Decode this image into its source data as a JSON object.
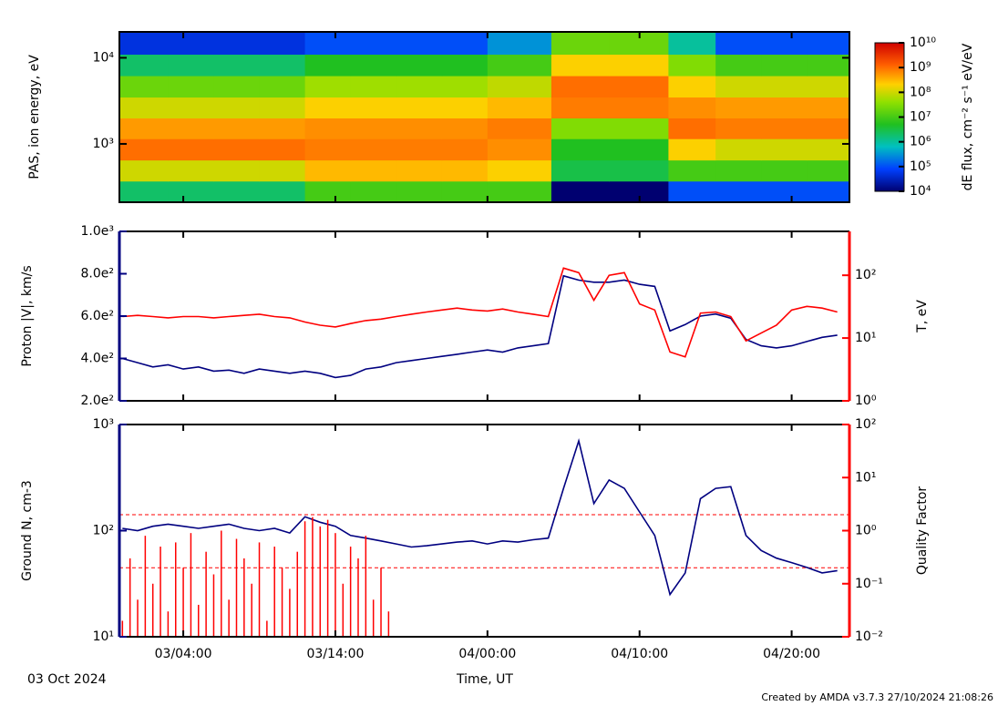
{
  "time_axis": {
    "xlim": [
      -0.2,
      47.8
    ],
    "xticks": [
      {
        "value": 4,
        "label": "03/04:00"
      },
      {
        "value": 14,
        "label": "03/14:00"
      },
      {
        "value": 24,
        "label": "04/00:00"
      },
      {
        "value": 34,
        "label": "04/10:00"
      },
      {
        "value": 44,
        "label": "04/20:00"
      }
    ],
    "label": "Time, UT",
    "date": "03 Oct 2024"
  },
  "footer": "Created by AMDA v3.7.3 27/10/2024 21:08:26",
  "chart_data": [
    {
      "type": "heatmap",
      "ylabel": "PAS, ion energy, eV",
      "log_y": true,
      "ylim": [
        210,
        20000
      ],
      "yticks": [
        {
          "value": 1000,
          "label": "10³"
        },
        {
          "value": 10000,
          "label": "10⁴"
        }
      ],
      "x_edges": [
        -0.2,
        3,
        6,
        9,
        12,
        15,
        18,
        21,
        24,
        28.2,
        32,
        35.9,
        39,
        42,
        45,
        47.8
      ],
      "y_edges": [
        210,
        370,
        650,
        1150,
        2000,
        3500,
        6200,
        11000,
        20000
      ],
      "z": [
        [
          2000000.0,
          2000000.0,
          2000000.0,
          2000000.0,
          10000000.0,
          10000000.0,
          10000000.0,
          10000000.0,
          10000000.0,
          10000.0,
          10000.0,
          100000.0,
          100000.0,
          100000.0,
          100000.0
        ],
        [
          100000000.0,
          100000000.0,
          100000000.0,
          100000000.0,
          300000000.0,
          300000000.0,
          300000000.0,
          300000000.0,
          200000000.0,
          3000000.0,
          3000000.0,
          10000000.0,
          10000000.0,
          10000000.0,
          10000000.0
        ],
        [
          1000000000.0,
          1000000000.0,
          1000000000.0,
          1000000000.0,
          800000000.0,
          800000000.0,
          800000000.0,
          800000000.0,
          600000000.0,
          5000000.0,
          5000000.0,
          200000000.0,
          100000000.0,
          100000000.0,
          100000000.0
        ],
        [
          500000000.0,
          500000000.0,
          500000000.0,
          500000000.0,
          600000000.0,
          600000000.0,
          600000000.0,
          600000000.0,
          800000000.0,
          30000000.0,
          30000000.0,
          1000000000.0,
          800000000.0,
          800000000.0,
          800000000.0
        ],
        [
          100000000.0,
          100000000.0,
          100000000.0,
          100000000.0,
          200000000.0,
          200000000.0,
          200000000.0,
          200000000.0,
          300000000.0,
          800000000.0,
          800000000.0,
          600000000.0,
          500000000.0,
          500000000.0,
          500000000.0
        ],
        [
          20000000.0,
          20000000.0,
          20000000.0,
          20000000.0,
          50000000.0,
          50000000.0,
          50000000.0,
          50000000.0,
          80000000.0,
          1000000000.0,
          1000000000.0,
          200000000.0,
          100000000.0,
          100000000.0,
          100000000.0
        ],
        [
          2000000.0,
          2000000.0,
          2000000.0,
          2000000.0,
          5000000.0,
          5000000.0,
          5000000.0,
          5000000.0,
          10000000.0,
          200000000.0,
          200000000.0,
          30000000.0,
          10000000.0,
          10000000.0,
          10000000.0
        ],
        [
          50000.0,
          50000.0,
          50000.0,
          50000.0,
          100000.0,
          100000.0,
          100000.0,
          100000.0,
          300000.0,
          20000000.0,
          20000000.0,
          1000000.0,
          100000.0,
          100000.0,
          100000.0
        ]
      ],
      "colorbar": {
        "label": "dE flux, cm⁻² s⁻¹ eV/eV",
        "zlim": [
          10000.0,
          10000000000.0
        ],
        "zticks": [
          {
            "value": 10000.0,
            "label": "10⁴"
          },
          {
            "value": 100000.0,
            "label": "10⁵"
          },
          {
            "value": 1000000.0,
            "label": "10⁶"
          },
          {
            "value": 10000000.0,
            "label": "10⁷"
          },
          {
            "value": 100000000.0,
            "label": "10⁸"
          },
          {
            "value": 1000000000.0,
            "label": "10⁹"
          },
          {
            "value": 10000000000.0,
            "label": "10¹⁰"
          }
        ]
      }
    },
    {
      "type": "line",
      "ylabel": "Proton |V|, km/s",
      "y2label": "T, eV",
      "log_y2": true,
      "ylim": [
        200,
        1000
      ],
      "yticks": [
        {
          "value": 200,
          "label": "2.0e²"
        },
        {
          "value": 400,
          "label": "4.0e²"
        },
        {
          "value": 600,
          "label": "6.0e²"
        },
        {
          "value": 800,
          "label": "8.0e²"
        },
        {
          "value": 1000,
          "label": "1.0e³"
        }
      ],
      "y2lim": [
        1,
        500
      ],
      "y2ticks": [
        {
          "value": 1,
          "label": "10⁰"
        },
        {
          "value": 10,
          "label": "10¹"
        },
        {
          "value": 100,
          "label": "10²"
        }
      ],
      "series": [
        {
          "name": "Proton |V|",
          "color": "#000080",
          "x": [
            0,
            1,
            2,
            3,
            4,
            5,
            6,
            7,
            8,
            9,
            10,
            11,
            12,
            13,
            14,
            15,
            16,
            17,
            18,
            19,
            20,
            21,
            22,
            23,
            24,
            25,
            26,
            27,
            28,
            29,
            30,
            31,
            32,
            33,
            34,
            35,
            36,
            37,
            38,
            39,
            40,
            41,
            42,
            43,
            44,
            45,
            46,
            47
          ],
          "values": [
            400,
            380,
            360,
            370,
            350,
            360,
            340,
            345,
            330,
            350,
            340,
            330,
            340,
            330,
            310,
            320,
            350,
            360,
            380,
            390,
            400,
            410,
            420,
            430,
            440,
            430,
            450,
            460,
            470,
            790,
            770,
            760,
            760,
            770,
            750,
            740,
            530,
            560,
            600,
            610,
            590,
            490,
            460,
            450,
            460,
            480,
            500,
            510
          ]
        },
        {
          "name": "T",
          "color": "#ff0000",
          "axis": "y2",
          "x": [
            0,
            1,
            2,
            3,
            4,
            5,
            6,
            7,
            8,
            9,
            10,
            11,
            12,
            13,
            14,
            15,
            16,
            17,
            18,
            19,
            20,
            21,
            22,
            23,
            24,
            25,
            26,
            27,
            28,
            29,
            30,
            31,
            32,
            33,
            34,
            35,
            36,
            37,
            38,
            39,
            40,
            41,
            42,
            43,
            44,
            45,
            46,
            47
          ],
          "values": [
            22,
            23,
            22,
            21,
            22,
            22,
            21,
            22,
            23,
            24,
            22,
            21,
            18,
            16,
            15,
            17,
            19,
            20,
            22,
            24,
            26,
            28,
            30,
            28,
            27,
            29,
            26,
            24,
            22,
            130,
            110,
            40,
            100,
            110,
            35,
            28,
            6,
            5,
            25,
            26,
            22,
            9,
            12,
            16,
            28,
            32,
            30,
            26
          ]
        }
      ]
    },
    {
      "type": "line",
      "ylabel": "Ground N, cm-3",
      "y2label": "Quality Factor",
      "log_y": true,
      "log_y2": true,
      "ylim": [
        10,
        1000
      ],
      "yticks": [
        {
          "value": 10,
          "label": "10¹"
        },
        {
          "value": 100,
          "label": "10²"
        },
        {
          "value": 1000,
          "label": "10³"
        }
      ],
      "y2lim": [
        0.01,
        100
      ],
      "y2ticks": [
        {
          "value": 0.01,
          "label": "10⁻²"
        },
        {
          "value": 0.1,
          "label": "10⁻¹"
        },
        {
          "value": 1,
          "label": "10⁰"
        },
        {
          "value": 10,
          "label": "10¹"
        },
        {
          "value": 100,
          "label": "10²"
        }
      ],
      "y2_reference_lines": [
        2,
        0.2
      ],
      "series": [
        {
          "name": "Ground N",
          "color": "#000080",
          "x": [
            0,
            1,
            2,
            3,
            4,
            5,
            6,
            7,
            8,
            9,
            10,
            11,
            12,
            13,
            14,
            15,
            16,
            17,
            18,
            19,
            20,
            21,
            22,
            23,
            24,
            25,
            26,
            27,
            28,
            29,
            30,
            31,
            32,
            33,
            34,
            35,
            36,
            37,
            38,
            39,
            40,
            41,
            42,
            43,
            44,
            45,
            46,
            47
          ],
          "values": [
            105,
            100,
            110,
            115,
            110,
            105,
            110,
            115,
            105,
            100,
            105,
            95,
            135,
            120,
            110,
            90,
            85,
            80,
            75,
            70,
            72,
            75,
            78,
            80,
            75,
            80,
            78,
            82,
            85,
            250,
            700,
            180,
            300,
            250,
            150,
            90,
            25,
            40,
            200,
            250,
            260,
            90,
            65,
            55,
            50,
            45,
            40,
            42
          ]
        },
        {
          "name": "Quality Factor",
          "color": "#ff0000",
          "axis": "y2",
          "style": "stem",
          "x": [
            0,
            0.5,
            1,
            1.5,
            2,
            2.5,
            3,
            3.5,
            4,
            4.5,
            5,
            5.5,
            6,
            6.5,
            7,
            7.5,
            8,
            8.5,
            9,
            9.5,
            10,
            10.5,
            11,
            11.5,
            12,
            12.5,
            13,
            13.5,
            14,
            14.5,
            15,
            15.5,
            16,
            16.5,
            17,
            17.5,
            18
          ],
          "values": [
            0.02,
            0.3,
            0.05,
            0.8,
            0.1,
            0.5,
            0.03,
            0.6,
            0.2,
            0.9,
            0.04,
            0.4,
            0.15,
            1.0,
            0.05,
            0.7,
            0.3,
            0.1,
            0.6,
            0.02,
            0.5,
            0.2,
            0.08,
            0.4,
            1.5,
            1.8,
            1.2,
            1.6,
            0.9,
            0.1,
            0.5,
            0.3,
            0.8,
            0.05,
            0.2,
            0.03,
            0.01
          ]
        }
      ]
    }
  ]
}
